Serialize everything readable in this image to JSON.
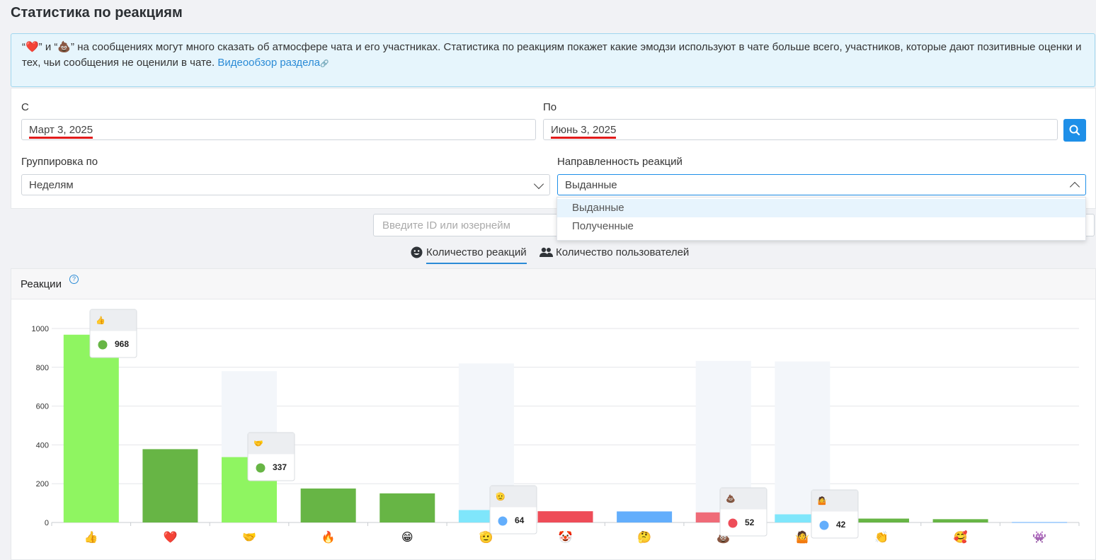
{
  "page": {
    "title": "Статистика по реакциям"
  },
  "info": {
    "text": "“❤️” и “💩” на сообщениях могут много сказать об атмосфере чата и его участниках. Статистика по реакциям покажет какие эмодзи используют в чате больше всего, участников, которые дают позитивные оценки и тех, чьи сообщения не оценили в чате. ",
    "link": "Видеообзор раздела"
  },
  "filters": {
    "from_label": "С",
    "from_value": "Март 3, 2025",
    "to_label": "По",
    "to_value": "Июнь 3, 2025",
    "group_label": "Группировка по",
    "group_value": "Неделям",
    "direction_label": "Направленность реакций",
    "direction_value": "Выданные",
    "direction_options": [
      "Выданные",
      "Полученные"
    ]
  },
  "user_search": {
    "placeholder": "Введите ID или юзернейм"
  },
  "tabs": [
    {
      "label": "Количество реакций",
      "icon": "smile-icon",
      "active": true
    },
    {
      "label": "Количество пользователей",
      "icon": "users-icon",
      "active": false
    }
  ],
  "card": {
    "title": "Реакции"
  },
  "colors": {
    "accent": "#1e8fe8",
    "info_bg": "#e6f5fc",
    "light_green": "#8ff561",
    "green": "#67b545",
    "red": "#ee4c58",
    "blue": "#63aefc",
    "cyan": "#7fe6fb"
  },
  "chart_data": {
    "type": "bar",
    "ylim": [
      0,
      1000
    ],
    "yticks": [
      0,
      200,
      400,
      600,
      800,
      1000
    ],
    "categories": [
      "👍",
      "❤️",
      "🤝",
      "🔥",
      "😁",
      "🫡",
      "🤡",
      "🤔",
      "💩",
      "🤷",
      "👏",
      "🥰",
      "👾"
    ],
    "values": [
      968,
      378,
      337,
      175,
      150,
      64,
      58,
      57,
      52,
      42,
      20,
      17,
      2
    ],
    "bar_colors": [
      "#8ff561",
      "#67b545",
      "#8ff561",
      "#67b545",
      "#67b545",
      "#7fe6fb",
      "#ee4c58",
      "#63aefc",
      "#ef6b78",
      "#7fe6fb",
      "#67b545",
      "#67b545",
      "#63aefc"
    ],
    "highlight_bars": [
      2,
      5,
      8,
      9
    ],
    "tooltips": [
      {
        "index": 0,
        "emoji": "👍",
        "value": "968",
        "dot": "#67b545"
      },
      {
        "index": 2,
        "emoji": "🤝",
        "value": "337",
        "dot": "#67b545"
      },
      {
        "index": 5,
        "emoji": "🫡",
        "value": "64",
        "dot": "#63aefc"
      },
      {
        "index": 8,
        "emoji": "💩",
        "value": "52",
        "dot": "#ee4c58"
      },
      {
        "index": 9,
        "emoji": "🤷",
        "value": "42",
        "dot": "#63aefc"
      }
    ]
  }
}
